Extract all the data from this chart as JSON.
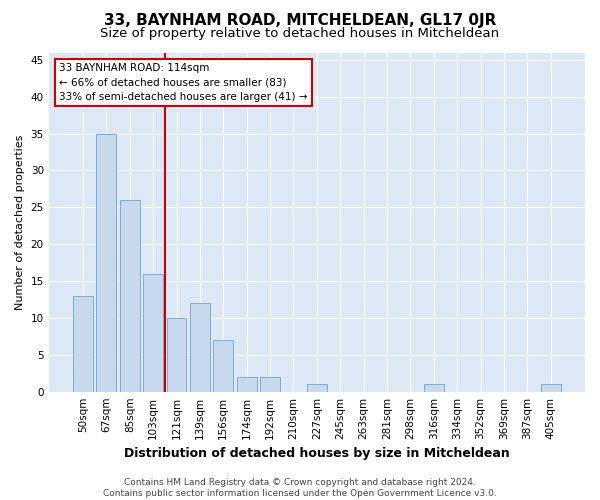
{
  "title": "33, BAYNHAM ROAD, MITCHELDEAN, GL17 0JR",
  "subtitle": "Size of property relative to detached houses in Mitcheldean",
  "xlabel": "Distribution of detached houses by size in Mitcheldean",
  "ylabel": "Number of detached properties",
  "categories": [
    "50sqm",
    "67sqm",
    "85sqm",
    "103sqm",
    "121sqm",
    "139sqm",
    "156sqm",
    "174sqm",
    "192sqm",
    "210sqm",
    "227sqm",
    "245sqm",
    "263sqm",
    "281sqm",
    "298sqm",
    "316sqm",
    "334sqm",
    "352sqm",
    "369sqm",
    "387sqm",
    "405sqm"
  ],
  "values": [
    13,
    35,
    26,
    16,
    10,
    12,
    7,
    2,
    2,
    0,
    1,
    0,
    0,
    0,
    0,
    1,
    0,
    0,
    0,
    0,
    1
  ],
  "bar_color": "#c8d9ee",
  "bar_edge_color": "#7badd4",
  "vline_x": 3.5,
  "vline_color": "#cc0000",
  "annotation_text": "33 BAYNHAM ROAD: 114sqm\n← 66% of detached houses are smaller (83)\n33% of semi-detached houses are larger (41) →",
  "annotation_box_color": "#ffffff",
  "annotation_box_edge_color": "#cc0000",
  "ylim": [
    0,
    46
  ],
  "yticks": [
    0,
    5,
    10,
    15,
    20,
    25,
    30,
    35,
    40,
    45
  ],
  "background_color": "#dce8f5",
  "fig_background": "#ffffff",
  "footer_text": "Contains HM Land Registry data © Crown copyright and database right 2024.\nContains public sector information licensed under the Open Government Licence v3.0.",
  "title_fontsize": 11,
  "subtitle_fontsize": 9.5,
  "xlabel_fontsize": 9,
  "ylabel_fontsize": 8,
  "tick_fontsize": 7.5,
  "footer_fontsize": 6.5
}
